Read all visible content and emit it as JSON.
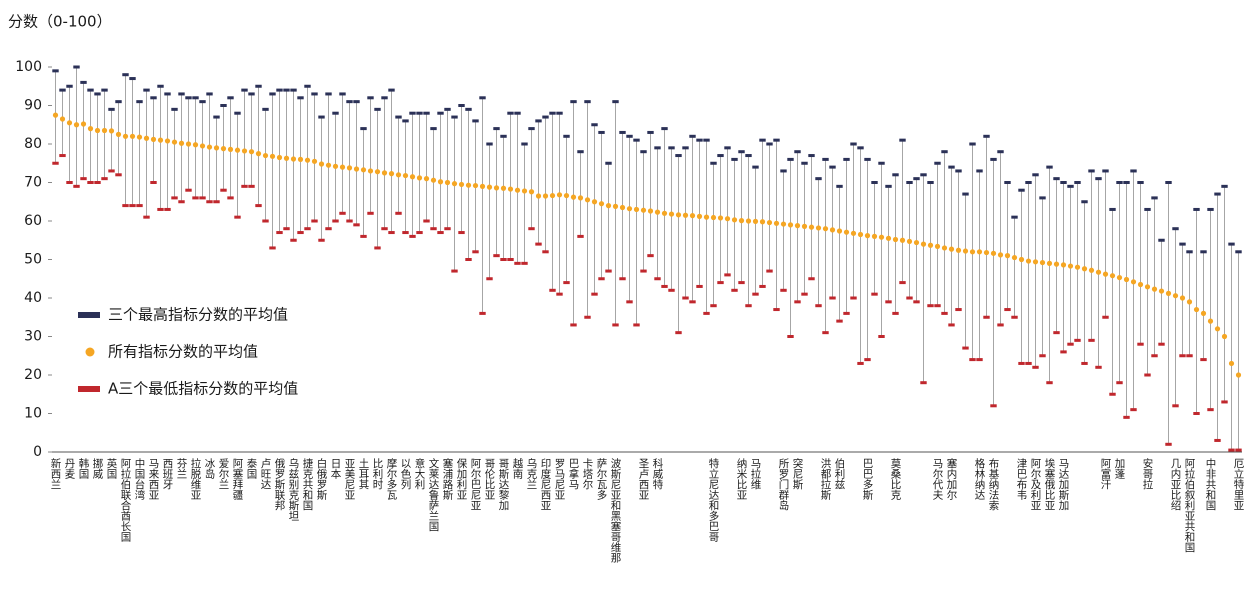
{
  "chart_data": {
    "type": "range-dot",
    "y_axis_label": "分数（0-100）",
    "ylim": [
      0,
      100
    ],
    "yticks": [
      0,
      10,
      20,
      30,
      40,
      50,
      60,
      70,
      80,
      90,
      100
    ],
    "legend": "left",
    "range_color": "#a6a6a6",
    "categories": [
      "新西兰",
      null,
      "丹麦",
      null,
      "韩国",
      null,
      "挪威",
      null,
      "英国",
      null,
      "阿拉伯联合酋长国",
      null,
      "中国台湾",
      null,
      "马来西亚",
      null,
      "西班牙",
      null,
      "芬兰",
      null,
      "拉脱维亚",
      null,
      "冰岛",
      null,
      "爱尔兰",
      null,
      "阿塞拜疆",
      null,
      "泰国",
      null,
      "卢旺达",
      null,
      "俄罗斯联邦",
      null,
      "乌兹别克斯坦",
      null,
      "捷克共和国",
      null,
      "白俄罗斯",
      null,
      "日本",
      null,
      "亚美尼亚",
      null,
      "土耳其",
      null,
      "比利时",
      null,
      "摩尔多瓦",
      null,
      "以色列",
      null,
      "意大利",
      null,
      "文莱达鲁萨兰国",
      null,
      "塞浦路斯",
      null,
      "保加利亚",
      null,
      "阿尔巴尼亚",
      null,
      "哥伦比亚",
      null,
      "哥斯达黎加",
      null,
      "越南",
      null,
      "乌克兰",
      null,
      "印度尼西亚",
      null,
      "罗马尼亚",
      null,
      "巴拿马",
      null,
      "卡塔尔",
      null,
      "萨尔瓦多",
      null,
      "波斯尼亚和黑塞哥维那",
      null,
      null,
      null,
      "圣卢西亚",
      null,
      "科威特",
      null,
      null,
      null,
      null,
      null,
      null,
      null,
      "特立尼达和多巴哥",
      null,
      null,
      null,
      "纳米比亚",
      null,
      "马拉维",
      null,
      null,
      null,
      "所罗门群岛",
      null,
      "突尼斯",
      null,
      null,
      null,
      "洪都拉斯",
      null,
      "伯利兹",
      null,
      null,
      null,
      "巴巴多斯",
      null,
      null,
      null,
      "莫桑比克",
      null,
      null,
      null,
      null,
      null,
      "马尔代夫",
      null,
      "塞内加尔",
      null,
      null,
      null,
      "格林纳达",
      null,
      "布基纳法索",
      null,
      null,
      null,
      "津巴布韦",
      null,
      "阿尔及利亚",
      null,
      "埃塞俄比亚",
      null,
      "马达加斯加",
      null,
      null,
      null,
      null,
      null,
      "阿富汗",
      null,
      "加蓬",
      null,
      null,
      null,
      "安哥拉",
      null,
      null,
      null,
      "几内亚比绍",
      null,
      "阿拉伯叙利亚共和国",
      null,
      null,
      "中非共和国",
      null,
      null,
      null,
      "厄立特里亚"
    ],
    "series": [
      {
        "name": "三个最高指标分数的平均值",
        "color": "#2b3157",
        "marker": "dash",
        "values": [
          99,
          94,
          95,
          100,
          96,
          94,
          93,
          94,
          89,
          91,
          98,
          97,
          91,
          94,
          92,
          95,
          93,
          89,
          93,
          92,
          92,
          91,
          93,
          87,
          90,
          92,
          88,
          94,
          93,
          95,
          89,
          93,
          94,
          94,
          94,
          92,
          95,
          93,
          87,
          93,
          88,
          93,
          91,
          91,
          84,
          92,
          89,
          92,
          94,
          87,
          86,
          88,
          88,
          88,
          84,
          88,
          89,
          87,
          90,
          89,
          86,
          92,
          80,
          84,
          82,
          88,
          88,
          80,
          84,
          86,
          87,
          88,
          88,
          82,
          91,
          78,
          91,
          85,
          83,
          75,
          91,
          83,
          82,
          81,
          78,
          83,
          79,
          84,
          79,
          77,
          79,
          82,
          81,
          81,
          75,
          77,
          79,
          76,
          78,
          77,
          74,
          81,
          80,
          81,
          73,
          76,
          78,
          75,
          77,
          71,
          76,
          74,
          69,
          76,
          80,
          79,
          76,
          70,
          75,
          69,
          72,
          81,
          70,
          71,
          72,
          70,
          75,
          78,
          74,
          73,
          67,
          80,
          73,
          82,
          76,
          78,
          70,
          61,
          68,
          70,
          72,
          66,
          74,
          71,
          70,
          69,
          70,
          65,
          73,
          71,
          73,
          63,
          70,
          70,
          73,
          70,
          63,
          66,
          55,
          70,
          58,
          54,
          52,
          63,
          52,
          63,
          67,
          69,
          54,
          52
        ]
      },
      {
        "name": "所有指标分数的平均值",
        "color": "#f5a623",
        "marker": "dot",
        "values": [
          87.5,
          86.5,
          85.5,
          85,
          85.2,
          84,
          83.5,
          83.5,
          83.4,
          82.5,
          82,
          82,
          81.8,
          81.5,
          81.2,
          81,
          80.8,
          80.5,
          80.2,
          80,
          79.8,
          79.5,
          79.2,
          79,
          78.8,
          78.6,
          78.4,
          78.2,
          78,
          77.5,
          77,
          76.8,
          76.5,
          76.3,
          76.1,
          76,
          75.8,
          75.5,
          74.8,
          74.5,
          74.2,
          74,
          73.8,
          73.5,
          73.3,
          73,
          72.8,
          72.5,
          72.3,
          72,
          71.8,
          71.5,
          71.2,
          71,
          70.6,
          70.2,
          70,
          69.7,
          69.5,
          69.3,
          69.2,
          69,
          68.8,
          68.6,
          68.5,
          68.3,
          68,
          67.8,
          67.6,
          66.5,
          66.5,
          66.6,
          66.8,
          66.6,
          66.2,
          66,
          65.5,
          65,
          64.5,
          64,
          63.8,
          63.5,
          63.2,
          63,
          62.8,
          62.6,
          62.3,
          62,
          61.8,
          61.6,
          61.5,
          61.4,
          61.2,
          61,
          60.9,
          60.8,
          60.6,
          60.3,
          60.1,
          60,
          59.9,
          59.8,
          59.6,
          59.4,
          59.2,
          59,
          58.8,
          58.6,
          58.4,
          58.2,
          58,
          57.7,
          57.4,
          57.1,
          56.8,
          56.5,
          56.2,
          56,
          55.8,
          55.5,
          55.2,
          55,
          54.7,
          54.4,
          54,
          53.7,
          53.4,
          53,
          52.7,
          52.4,
          52.2,
          52,
          52,
          51.8,
          51.6,
          51.2,
          51,
          50.5,
          50,
          49.6,
          49.4,
          49.2,
          49,
          48.8,
          48.6,
          48.3,
          48,
          47.6,
          47.2,
          46.7,
          46.2,
          45.8,
          45.3,
          44.8,
          44.2,
          43.5,
          42.9,
          42.3,
          41.8,
          41.2,
          40.6,
          40,
          39,
          37,
          36,
          34,
          32,
          30,
          23,
          20
        ]
      },
      {
        "name": "A三个最低指标分数的平均值",
        "color": "#c0272d",
        "marker": "dash",
        "values": [
          75,
          77,
          70,
          69,
          71,
          70,
          70,
          71,
          73,
          72,
          64,
          64,
          64,
          61,
          70,
          63,
          63,
          66,
          65,
          68,
          66,
          66,
          65,
          65,
          68,
          66,
          61,
          69,
          69,
          64,
          60,
          53,
          57,
          58,
          55,
          57,
          58,
          60,
          55,
          58,
          60,
          62,
          60,
          59,
          56,
          62,
          53,
          58,
          57,
          62,
          57,
          56,
          57,
          60,
          58,
          57,
          58,
          47,
          57,
          50,
          52,
          36,
          45,
          51,
          50,
          50,
          49,
          49,
          58,
          54,
          52,
          42,
          41,
          44,
          33,
          56,
          35,
          41,
          45,
          47,
          33,
          45,
          39,
          33,
          47,
          51,
          45,
          43,
          42,
          31,
          40,
          39,
          43,
          36,
          38,
          44,
          46,
          42,
          44,
          38,
          41,
          43,
          47,
          37,
          42,
          30,
          39,
          41,
          45,
          38,
          31,
          40,
          34,
          36,
          40,
          23,
          24,
          41,
          30,
          39,
          36,
          44,
          40,
          39,
          18,
          38,
          38,
          36,
          33,
          37,
          27,
          24,
          24,
          35,
          12,
          33,
          37,
          35,
          23,
          23,
          22,
          25,
          18,
          31,
          26,
          28,
          29,
          23,
          29,
          22,
          35,
          15,
          18,
          9,
          11,
          28,
          20,
          25,
          28,
          2,
          12,
          25,
          25,
          10,
          24,
          11,
          3,
          13,
          0.5,
          0.5
        ]
      }
    ]
  }
}
